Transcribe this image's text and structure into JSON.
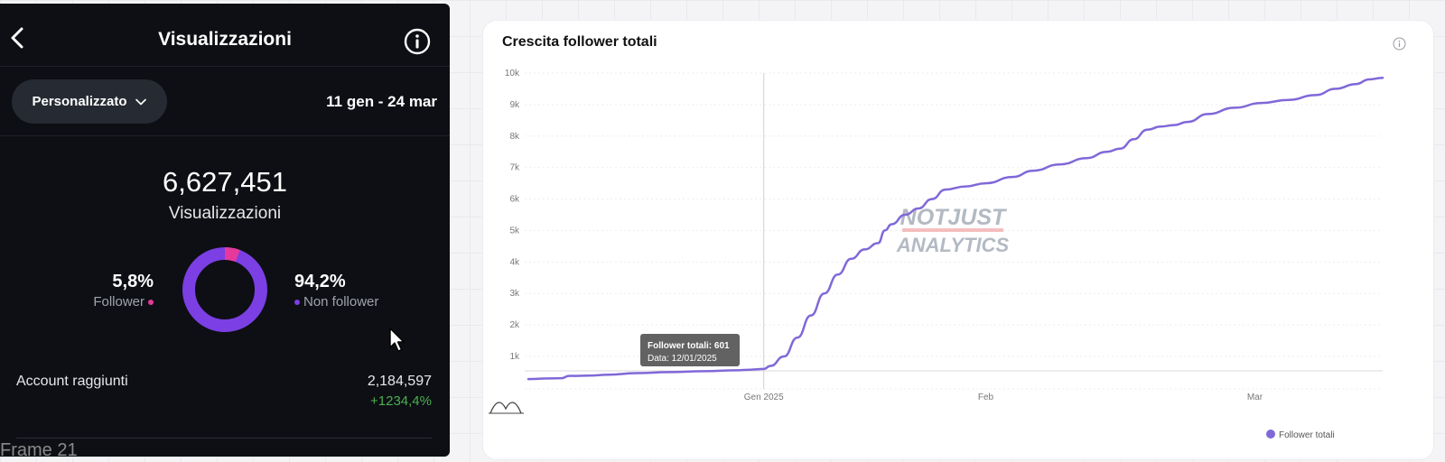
{
  "app": {
    "title": "Visualizzazioni",
    "filter_label": "Personalizzato",
    "date_range": "11 gen - 24 mar",
    "total_views": "6,627,451",
    "total_views_label": "Visualizzazioni",
    "followers_pct": "5,8%",
    "followers_label": "Follower",
    "followers_fraction": 0.058,
    "non_followers_pct": "94,2%",
    "non_followers_label": "Non follower",
    "accounts_label": "Account raggiunti",
    "accounts_value": "2,184,597",
    "accounts_delta": "+1234,4%",
    "colors": {
      "follower": "#e6399b",
      "non_follower": "#7b3fe4",
      "positive": "#4caf50"
    }
  },
  "frame_label": "Frame 21",
  "card": {
    "title": "Crescita follower totali",
    "tooltip_title": "Follower totali: 601",
    "tooltip_date": "Data: 12/01/2025",
    "watermark_line1": "NOTJUST",
    "watermark_line2": "ANALYTICS"
  },
  "chart_data": {
    "type": "line",
    "title": "Crescita follower totali",
    "xlabel": "",
    "ylabel": "",
    "x_ticks": [
      "Gen 2025",
      "Feb",
      "Mar"
    ],
    "y_ticks": [
      "1k",
      "2k",
      "3k",
      "4k",
      "5k",
      "6k",
      "7k",
      "8k",
      "9k",
      "10k"
    ],
    "ylim": [
      600,
      10000
    ],
    "legend": "bottom-right",
    "grid": true,
    "color": "#8068d8",
    "series": [
      {
        "name": "Follower totali",
        "points": [
          [
            "2024-12-08",
            280
          ],
          [
            "2024-12-11",
            300
          ],
          [
            "2024-12-13",
            310
          ],
          [
            "2024-12-14",
            380
          ],
          [
            "2024-12-17",
            390
          ],
          [
            "2024-12-20",
            420
          ],
          [
            "2024-12-24",
            470
          ],
          [
            "2024-12-29",
            500
          ],
          [
            "2025-01-03",
            530
          ],
          [
            "2025-01-08",
            560
          ],
          [
            "2025-01-10",
            580
          ],
          [
            "2025-01-12",
            601
          ],
          [
            "2025-01-13",
            700
          ],
          [
            "2025-01-15",
            1000
          ],
          [
            "2025-01-17",
            1600
          ],
          [
            "2025-01-19",
            2300
          ],
          [
            "2025-01-21",
            3000
          ],
          [
            "2025-01-23",
            3600
          ],
          [
            "2025-01-25",
            4100
          ],
          [
            "2025-01-27",
            4400
          ],
          [
            "2025-01-29",
            4600
          ],
          [
            "2025-01-30",
            5000
          ],
          [
            "2025-01-31",
            5200
          ],
          [
            "2025-02-02",
            5500
          ],
          [
            "2025-02-04",
            5700
          ],
          [
            "2025-02-06",
            6000
          ],
          [
            "2025-02-08",
            6300
          ],
          [
            "2025-02-11",
            6400
          ],
          [
            "2025-02-14",
            6500
          ],
          [
            "2025-02-18",
            6700
          ],
          [
            "2025-02-21",
            6900
          ],
          [
            "2025-02-25",
            7100
          ],
          [
            "2025-03-01",
            7300
          ],
          [
            "2025-03-04",
            7500
          ],
          [
            "2025-03-06",
            7600
          ],
          [
            "2025-03-08",
            7900
          ],
          [
            "2025-03-10",
            8200
          ],
          [
            "2025-03-12",
            8300
          ],
          [
            "2025-03-14",
            8350
          ],
          [
            "2025-03-16",
            8450
          ],
          [
            "2025-03-19",
            8700
          ],
          [
            "2025-03-23",
            8900
          ],
          [
            "2025-03-27",
            9050
          ],
          [
            "2025-03-31",
            9150
          ],
          [
            "2025-04-04",
            9300
          ],
          [
            "2025-04-07",
            9500
          ],
          [
            "2025-04-10",
            9650
          ],
          [
            "2025-04-12",
            9800
          ],
          [
            "2025-04-14",
            9850
          ]
        ]
      }
    ],
    "highlight": {
      "date": "2025-01-12",
      "value": 601
    }
  }
}
